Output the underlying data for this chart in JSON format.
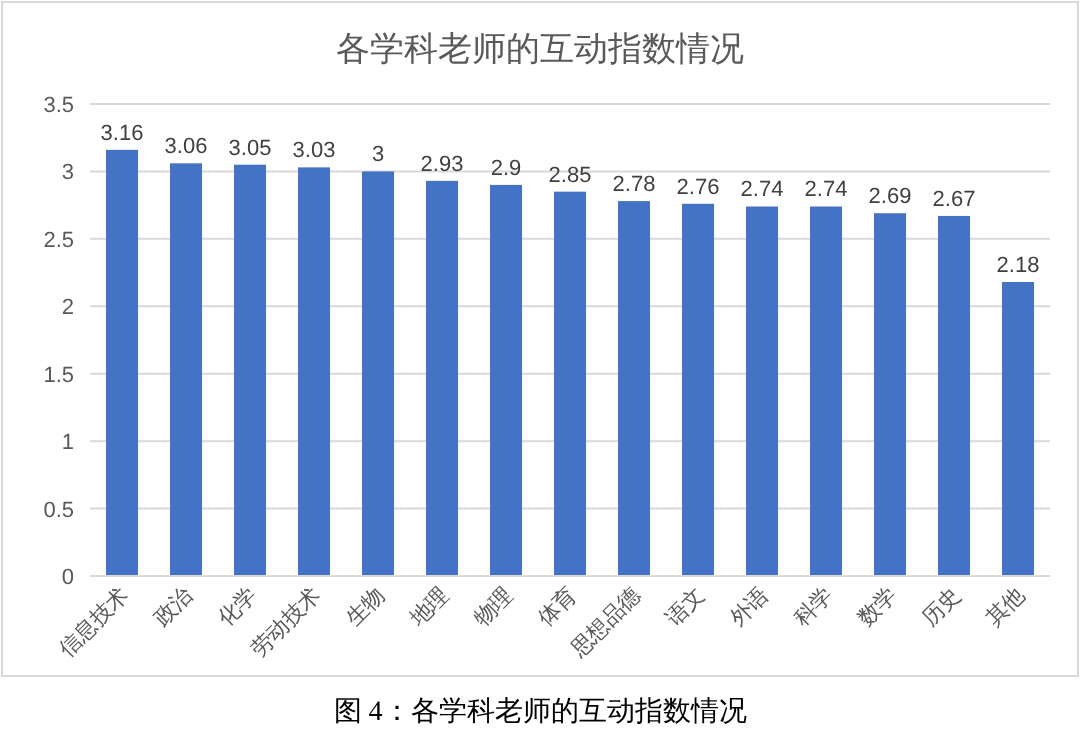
{
  "chart_data": {
    "type": "bar",
    "title": "各学科老师的互动指数情况",
    "categories": [
      "信息技术",
      "政治",
      "化学",
      "劳动技术",
      "生物",
      "地理",
      "物理",
      "体育",
      "思想品德",
      "语文",
      "外语",
      "科学",
      "数学",
      "历史",
      "其他"
    ],
    "values": [
      3.16,
      3.06,
      3.05,
      3.03,
      3,
      2.93,
      2.9,
      2.85,
      2.78,
      2.76,
      2.74,
      2.74,
      2.69,
      2.67,
      2.18
    ],
    "color": "#4472c4",
    "ylim": [
      0,
      3.5
    ],
    "yticks": [
      0,
      0.5,
      1,
      1.5,
      2,
      2.5,
      3,
      3.5
    ],
    "grid": "y",
    "data_labels": true,
    "annotations": [
      "图 4：各学科老师的互动指数情况"
    ]
  }
}
